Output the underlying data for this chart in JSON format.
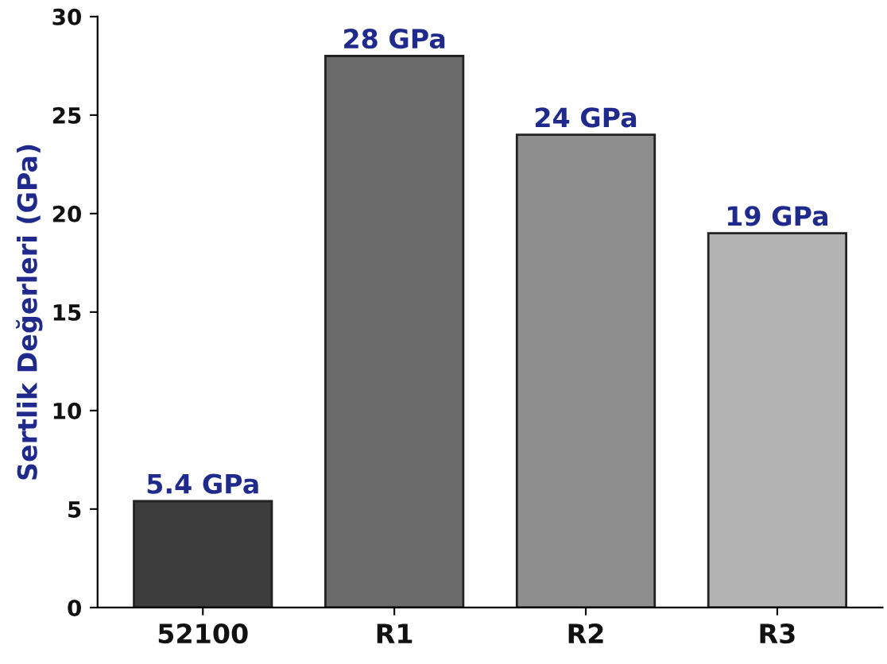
{
  "chart_data": {
    "type": "bar",
    "ylabel": "Sertlik Değerleri (GPa)",
    "categories": [
      "52100",
      "R1",
      "R2",
      "R3"
    ],
    "values": [
      5.4,
      28,
      24,
      19
    ],
    "colors": [
      "#3d3d3d",
      "#6b6b6b",
      "#8e8e8e",
      "#b3b3b3"
    ],
    "value_labels": [
      "5.4 GPa",
      "28 GPa",
      "24 GPa",
      "19 GPa"
    ],
    "ylim": [
      0,
      30
    ],
    "yticks": [
      0,
      5,
      10,
      15,
      20,
      25,
      30
    ],
    "grid": false,
    "legend": false
  }
}
